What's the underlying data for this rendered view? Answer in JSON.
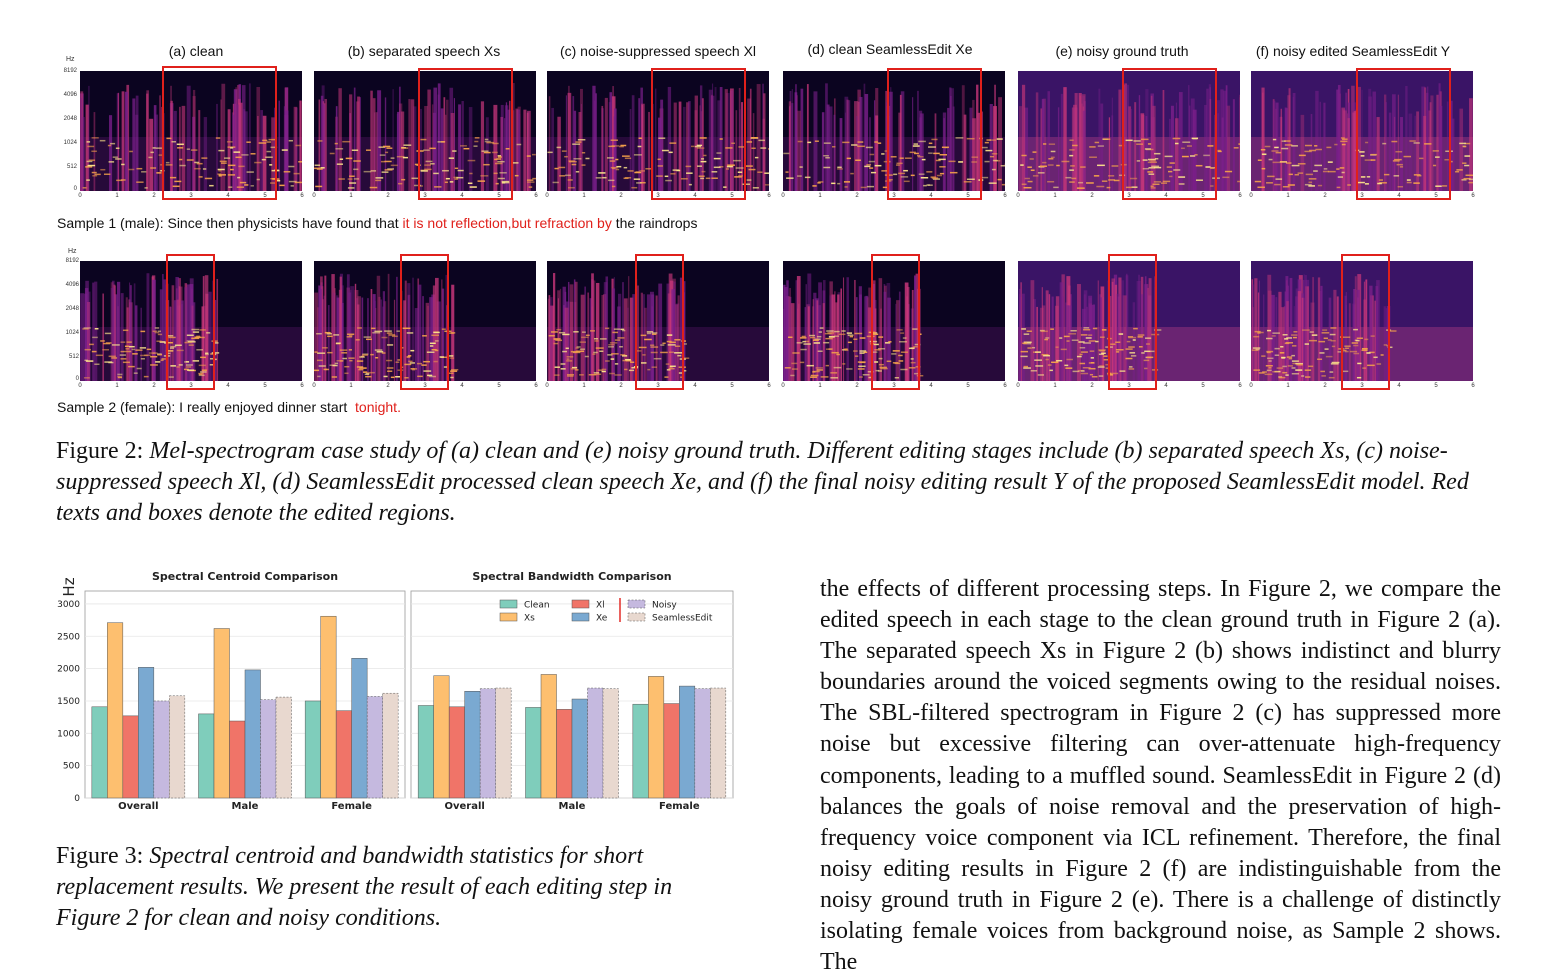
{
  "figure2": {
    "panel_titles": [
      "(a) clean",
      "(b) separated speech Xs",
      "(c) noise-suppressed speech Xl",
      "(d) clean SeamlessEdit Xe",
      "(e) noisy ground truth",
      "(f) noisy edited SeamlessEdit Y"
    ],
    "hz_label": "Hz",
    "y_ticks": [
      "8192",
      "4096",
      "2048",
      "1024",
      "512",
      "0"
    ],
    "x_ticks": [
      "0",
      "1",
      "2",
      "3",
      "4",
      "5",
      "6"
    ],
    "sample1": {
      "prefix": "Sample 1 (male): Since then physicists have found that ",
      "highlight": "it is not reflection,but refraction by",
      "suffix": " the raindrops"
    },
    "sample2": {
      "prefix": "Sample 2 (female): I really enjoyed dinner start  ",
      "highlight": "tonight.",
      "suffix": ""
    },
    "caption": {
      "label": "Figure 2: ",
      "text": "Mel-spectrogram case study of (a) clean and (e) noisy ground truth. Different editing stages include (b) separated speech Xs, (c) noise-suppressed speech Xl, (d) SeamlessEdit processed clean speech Xe, and (f) the final noisy editing result Y of the proposed SeamlessEdit model. Red texts and boxes denote the edited regions."
    },
    "colors": {
      "box": "#e0201b"
    }
  },
  "figure3": {
    "caption": {
      "label": "Figure 3: ",
      "text": "Spectral centroid and bandwidth statistics for short replacement results. We present the result of each editing step in Figure 2 for clean and noisy conditions."
    }
  },
  "chart_data": [
    {
      "type": "bar",
      "title": "Spectral Centroid Comparison",
      "ylabel": "Hz",
      "ylim": [
        0,
        3200
      ],
      "yticks": [
        0,
        500,
        1000,
        1500,
        2000,
        2500,
        3000
      ],
      "categories": [
        "Overall",
        "Male",
        "Female"
      ],
      "grid": true,
      "series": [
        {
          "name": "Clean",
          "color": "#7fcdbb",
          "values": [
            1410,
            1300,
            1500
          ]
        },
        {
          "name": "Xs",
          "color": "#fdbf6f",
          "values": [
            2710,
            2620,
            2810
          ]
        },
        {
          "name": "Xl",
          "color": "#f07468",
          "values": [
            1270,
            1190,
            1350
          ]
        },
        {
          "name": "Xe",
          "color": "#7aa9d1",
          "values": [
            2020,
            1980,
            2160
          ]
        },
        {
          "name": "Noisy",
          "color": "#c5b9df",
          "values": [
            1500,
            1520,
            1570
          ]
        },
        {
          "name": "SeamlessEdit",
          "color": "#e8d8cf",
          "values": [
            1580,
            1560,
            1620
          ]
        }
      ]
    },
    {
      "type": "bar",
      "title": "Spectral Bandwidth Comparison",
      "ylim": [
        0,
        3200
      ],
      "categories": [
        "Overall",
        "Male",
        "Female"
      ],
      "legend": "top-right",
      "grid": true,
      "series": [
        {
          "name": "Clean",
          "color": "#7fcdbb",
          "values": [
            1430,
            1400,
            1450
          ]
        },
        {
          "name": "Xs",
          "color": "#fdbf6f",
          "values": [
            1890,
            1910,
            1880
          ]
        },
        {
          "name": "Xl",
          "color": "#f07468",
          "values": [
            1410,
            1370,
            1460
          ]
        },
        {
          "name": "Xe",
          "color": "#7aa9d1",
          "values": [
            1650,
            1530,
            1730
          ]
        },
        {
          "name": "Noisy",
          "color": "#c5b9df",
          "values": [
            1690,
            1700,
            1690
          ]
        },
        {
          "name": "SeamlessEdit",
          "color": "#e8d8cf",
          "values": [
            1700,
            1690,
            1700
          ]
        }
      ]
    }
  ],
  "body_text": "the effects of different processing steps. In Figure 2, we compare the edited speech in each stage to the clean ground truth in Figure 2 (a). The separated speech Xs in Figure 2 (b) shows indistinct and blurry boundaries around the voiced segments owing to the residual noises. The SBL-filtered spectrogram in Figure 2 (c) has suppressed more noise but excessive filtering can over-attenuate high-frequency components, leading to a muffled sound. SeamlessEdit in Figure 2 (d) balances the goals of noise removal and the preservation of high-frequency voice component via ICL refinement. Therefore, the final noisy editing results in Figure 2 (f) are indistinguishable from the noisy ground truth in Figure 2 (e). There is a challenge of distinctly isolating female voices from background noise, as Sample 2 shows. The"
}
